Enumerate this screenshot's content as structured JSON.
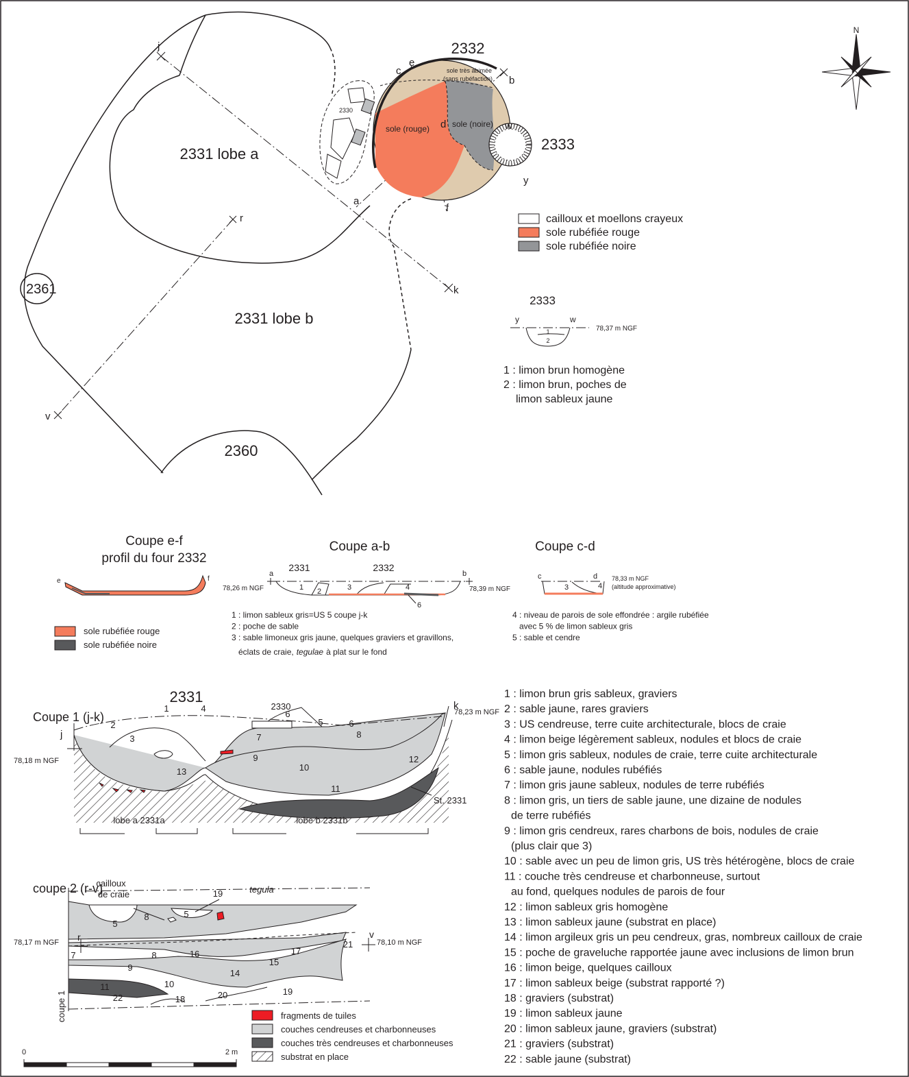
{
  "plan": {
    "labels": {
      "f2332": "2332",
      "lobe_a": "2331 lobe a",
      "lobe_b": "2331 lobe b",
      "f2333": "2333",
      "f2361": "2361",
      "f2360": "2360",
      "f2330": "2330",
      "sole_abimee": "sole très abimée",
      "sans_rube": "(sans rubéfaction)",
      "sole_rouge": "sole (rouge)",
      "sole_noire": "sole (noire)"
    },
    "points": {
      "j": "j",
      "c": "c",
      "e": "e",
      "b": "b",
      "d": "d",
      "w": "w",
      "a": "a",
      "f": "f",
      "r": "r",
      "k": "k",
      "v": "v",
      "y": "y"
    },
    "north": "N",
    "legend": [
      {
        "label": "cailloux et moellons crayeux",
        "color": "#ffffff"
      },
      {
        "label": "sole rubéfiée rouge",
        "color": "#f47c5c"
      },
      {
        "label": "sole rubéfiée noire",
        "color": "#939598"
      }
    ]
  },
  "section_2333": {
    "title": "2333",
    "y": "y",
    "w": "w",
    "level": "78,37 m NGF",
    "layers": [
      "1",
      "2"
    ],
    "notes": [
      "1 : limon brun homogène",
      "2 : limon brun, poches de",
      "limon sableux jaune"
    ]
  },
  "coupe_ef": {
    "title": [
      "Coupe e-f",
      "profil du four 2332"
    ],
    "e": "e",
    "f": "f",
    "legend": [
      {
        "label": "sole rubéfiée rouge",
        "color": "#f47c5c"
      },
      {
        "label": "sole rubéfiée noire",
        "color": "#58595b"
      }
    ]
  },
  "coupe_ab": {
    "title": "Coupe a-b",
    "a": "a",
    "b": "b",
    "f2331": "2331",
    "f2332": "2332",
    "level_a": "78,26 m NGF",
    "level_b": "78,39 m NGF",
    "layers": [
      "1",
      "2",
      "3",
      "4",
      "6"
    ],
    "notes": [
      "1 : limon sableux gris=US 5 coupe j-k",
      "2 : poche de sable",
      "3 : sable limoneux gris jaune, quelques graviers et gravillons,"
    ],
    "note3_cont": {
      "before": "éclats de craie,",
      "italic": "tegulae",
      "after": "à plat sur le fond"
    }
  },
  "coupe_cd": {
    "title": "Coupe c-d",
    "c": "c",
    "d": "d",
    "level": "78,33 m NGF",
    "level_note": "(altitude approximative)",
    "layers": [
      "3",
      "4"
    ],
    "notes": [
      "4 : niveau de parois de sole effondrée : argile rubéfiée",
      "avec 5 % de limon sableux gris",
      "5 : sable et cendre"
    ]
  },
  "coupe1": {
    "heading": "2331",
    "title": "Coupe 1 (j-k)",
    "f2330": "2330",
    "j": "j",
    "k": "k",
    "level_j": "78,18 m NGF",
    "level_k": "78,23 m NGF",
    "layers": [
      "1",
      "2",
      "3",
      "4",
      "5",
      "6",
      "6",
      "7",
      "8",
      "9",
      "10",
      "11",
      "12",
      "13"
    ],
    "st": "St. 2331",
    "lobe_a": "lobe a 2331a",
    "lobe_b": "lobe b 2331b"
  },
  "coupe2": {
    "title": "coupe 2 (r-v)",
    "cailloux": [
      "cailloux",
      "de craie"
    ],
    "tegula": "tegula",
    "r": "r",
    "v": "v",
    "level_r": "78,17 m NGF",
    "level_v": "78,10 m NGF",
    "layers": [
      "19",
      "5",
      "8",
      "5",
      "7",
      "8",
      "16",
      "17",
      "15",
      "21",
      "9",
      "14",
      "10",
      "11",
      "22",
      "18",
      "20",
      "19"
    ],
    "coupe1": "coupe 1"
  },
  "legend": [
    {
      "label": "fragments de tuiles",
      "color": "#ed1c24"
    },
    {
      "label": "couches cendreuses et charbonneuses",
      "color": "#d1d3d4"
    },
    {
      "label": "couches très cendreuses et charbonneuses",
      "color": "#58595b"
    },
    {
      "label": "substrat en place",
      "color": "hatch"
    }
  ],
  "scale": {
    "start": "0",
    "end": "2 m"
  },
  "us_list": [
    [
      "1 : limon brun gris sableux, graviers"
    ],
    [
      "2 : sable jaune, rares graviers"
    ],
    [
      "3 : US cendreuse, terre cuite architecturale, blocs de craie"
    ],
    [
      "4 : limon beige légèrement sableux, nodules et blocs de craie"
    ],
    [
      "5 : limon gris sableux, nodules de craie, terre cuite architecturale"
    ],
    [
      "6 : sable jaune, nodules rubéfiés"
    ],
    [
      "7 : limon gris jaune sableux, nodules de terre rubéfiés"
    ],
    [
      "8 : limon gris, un tiers de sable jaune, une dizaine de nodules",
      "de terre rubéfiés"
    ],
    [
      "9 : limon gris cendreux, rares charbons de bois, nodules de craie",
      "(plus clair que 3)"
    ],
    [
      "10 : sable avec un peu de limon gris, US très hétérogène, blocs de craie"
    ],
    [
      "11 : couche très cendreuse et charbonneuse, surtout",
      "au fond, quelques nodules de  parois de four"
    ],
    [
      "12 : limon sableux gris homogène"
    ],
    [
      "13 : limon sableux jaune (substrat en place)"
    ],
    [
      "14 : limon argileux gris un peu cendreux, gras, nombreux cailloux de craie"
    ],
    [
      "15 : poche de graveluche rapportée jaune avec  inclusions de limon brun"
    ],
    [
      "16 : limon beige, quelques cailloux"
    ],
    [
      "17 : limon sableux beige (substrat rapporté ?)"
    ],
    [
      "18 : graviers (substrat)"
    ],
    [
      "19 : limon sableux jaune"
    ],
    [
      "20 : limon sableux jaune, graviers (substrat)"
    ],
    [
      "21 : graviers (substrat)"
    ],
    [
      "22 : sable jaune (substrat)"
    ]
  ]
}
